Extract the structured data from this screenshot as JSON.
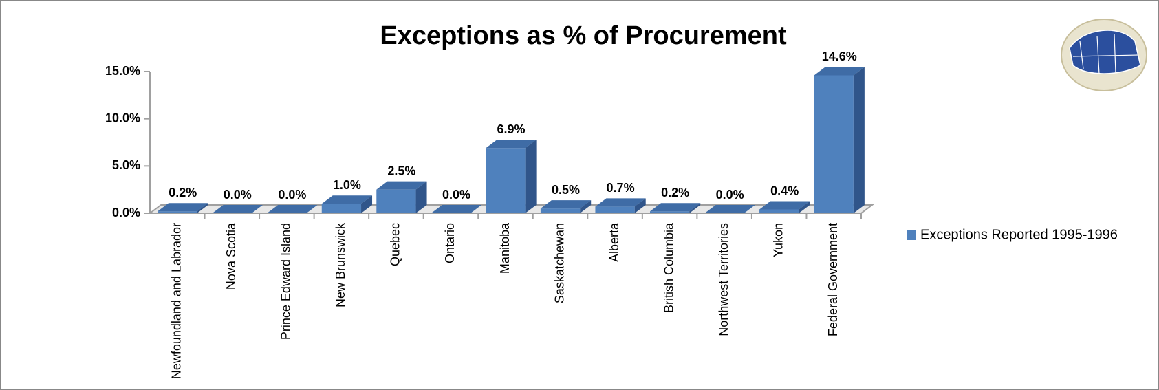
{
  "chart_data": {
    "type": "bar3d",
    "title": "Exceptions as % of Procurement",
    "categories": [
      "Newfoundland and Labrador",
      "Nova Scotia",
      "Prince Edward Island",
      "New Brunswick",
      "Quebec",
      "Ontario",
      "Manitoba",
      "Saskatchewan",
      "Alberta",
      "British Columbia",
      "Northwest Territories",
      "Yukon",
      "Federal Government"
    ],
    "series": [
      {
        "name": "Exceptions Reported 1995-1996",
        "color": "#4f81bd",
        "values": [
          0.2,
          0.0,
          0.0,
          1.0,
          2.5,
          0.0,
          6.9,
          0.5,
          0.7,
          0.2,
          0.0,
          0.4,
          14.6
        ],
        "value_labels": [
          "0.2%",
          "0.0%",
          "0.0%",
          "1.0%",
          "2.5%",
          "0.0%",
          "6.9%",
          "0.5%",
          "0.7%",
          "0.2%",
          "0.0%",
          "0.4%",
          "14.6%"
        ]
      }
    ],
    "ylim": [
      0,
      15
    ],
    "yticks": [
      {
        "value": 0,
        "label": "0.0%"
      },
      {
        "value": 5,
        "label": "5.0%"
      },
      {
        "value": 10,
        "label": "10.0%"
      },
      {
        "value": 15,
        "label": "15.0%"
      }
    ],
    "legend": "right"
  }
}
